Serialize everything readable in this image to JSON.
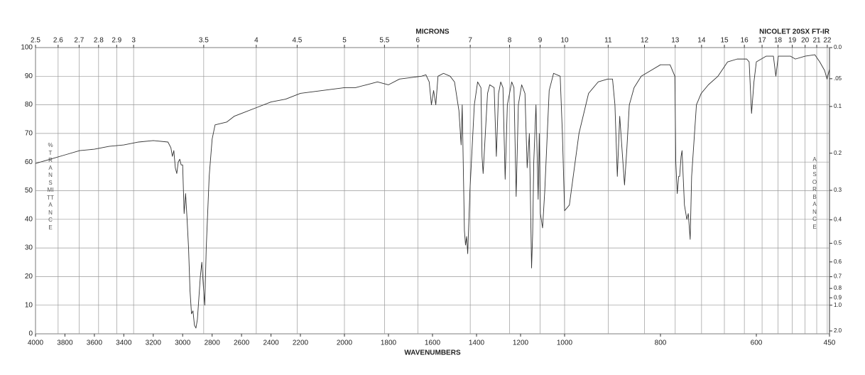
{
  "chart_data": {
    "type": "line",
    "title": "NICOLET 20SX FT-IR",
    "x_label": "WAVENUMBERS",
    "top_label": "MICRONS",
    "y_label": "%TRANSMITTANCE",
    "y2_label": "ABSORBANCE",
    "color": "#333333",
    "grid": true,
    "ylim": [
      0,
      100
    ],
    "yticks": [
      0,
      10,
      20,
      30,
      40,
      50,
      60,
      70,
      80,
      90,
      100
    ],
    "xlim": [
      4000,
      450
    ],
    "xticks": [
      4000,
      3800,
      3600,
      3400,
      3200,
      3000,
      2800,
      2600,
      2400,
      2200,
      2000,
      1800,
      1600,
      1400,
      1200,
      1000,
      800,
      600,
      450
    ],
    "micron_ticks": [
      2.5,
      2.6,
      2.7,
      2.8,
      2.9,
      3,
      3.5,
      4,
      4.5,
      5,
      5.5,
      6,
      7,
      8,
      9,
      10,
      11,
      12,
      13,
      14,
      15,
      16,
      17,
      18,
      19,
      20,
      21,
      22
    ],
    "y2scale": "absorbance",
    "y2ticks": [
      {
        "value": 0,
        "label": "0.0"
      },
      {
        "value": 0.05,
        "label": ".05"
      },
      {
        "value": 0.1,
        "label": "0.1"
      },
      0.2,
      0.3,
      0.4,
      0.5,
      0.6,
      0.7,
      0.8,
      0.9,
      {
        "value": 1,
        "label": "1.0"
      },
      {
        "value": 2,
        "label": "2.0"
      }
    ],
    "x": [
      4000,
      3900,
      3800,
      3700,
      3600,
      3500,
      3400,
      3300,
      3200,
      3100,
      3080,
      3070,
      3060,
      3050,
      3040,
      3030,
      3020,
      3010,
      3000,
      2990,
      2980,
      2970,
      2960,
      2950,
      2940,
      2930,
      2920,
      2910,
      2900,
      2880,
      2870,
      2860,
      2850,
      2840,
      2820,
      2800,
      2780,
      2700,
      2650,
      2600,
      2500,
      2400,
      2300,
      2200,
      2100,
      2000,
      1950,
      1900,
      1850,
      1800,
      1750,
      1700,
      1650,
      1630,
      1615,
      1605,
      1595,
      1585,
      1575,
      1550,
      1520,
      1500,
      1480,
      1470,
      1465,
      1455,
      1450,
      1445,
      1440,
      1430,
      1410,
      1395,
      1380,
      1375,
      1370,
      1360,
      1350,
      1340,
      1320,
      1310,
      1300,
      1290,
      1280,
      1270,
      1260,
      1240,
      1230,
      1220,
      1210,
      1195,
      1180,
      1170,
      1160,
      1150,
      1145,
      1140,
      1130,
      1120,
      1115,
      1110,
      1100,
      1090,
      1070,
      1050,
      1020,
      1010,
      1000,
      990,
      970,
      950,
      930,
      910,
      900,
      895,
      890,
      885,
      880,
      875,
      870,
      865,
      855,
      840,
      820,
      800,
      780,
      770,
      768,
      765,
      762,
      760,
      757,
      755,
      750,
      745,
      742,
      738,
      735,
      725,
      715,
      700,
      680,
      660,
      640,
      620,
      615,
      610,
      605,
      600,
      580,
      565,
      560,
      555,
      530,
      520,
      500,
      480,
      470,
      460,
      455,
      450
    ],
    "values": [
      59.5,
      61,
      62.5,
      64,
      64.5,
      65.5,
      66,
      67,
      67.5,
      67,
      65,
      62,
      64,
      58,
      56,
      60,
      61,
      59,
      59,
      42,
      49,
      40,
      30,
      15,
      7,
      8,
      3,
      2,
      5,
      20,
      25,
      17,
      10,
      30,
      55,
      68,
      73,
      74,
      76,
      77,
      79,
      81,
      82,
      84,
      85,
      86,
      86,
      87,
      88,
      87,
      89,
      89.5,
      90,
      90.5,
      88,
      80,
      85,
      80,
      90,
      91,
      90,
      88,
      78,
      66,
      80,
      36,
      31,
      34,
      28,
      50,
      80,
      88,
      86,
      62,
      56,
      70,
      84,
      87,
      86,
      62,
      84,
      88,
      86,
      54,
      80,
      88,
      86,
      48,
      80,
      87,
      84,
      58,
      70,
      23,
      35,
      60,
      80,
      47,
      70,
      42,
      37,
      50,
      85,
      91,
      90,
      70,
      43,
      45,
      70,
      84,
      88,
      89,
      89,
      80,
      55,
      76,
      64,
      52,
      65,
      80,
      86,
      90,
      92,
      94,
      94,
      90,
      60,
      49,
      55,
      55,
      62,
      64,
      45,
      40,
      42,
      33,
      55,
      80,
      84,
      87,
      90,
      95,
      96,
      96,
      95,
      77,
      88,
      95,
      97,
      97,
      90,
      97,
      97,
      96,
      97,
      97.5,
      95,
      92,
      89,
      92.5
    ]
  }
}
